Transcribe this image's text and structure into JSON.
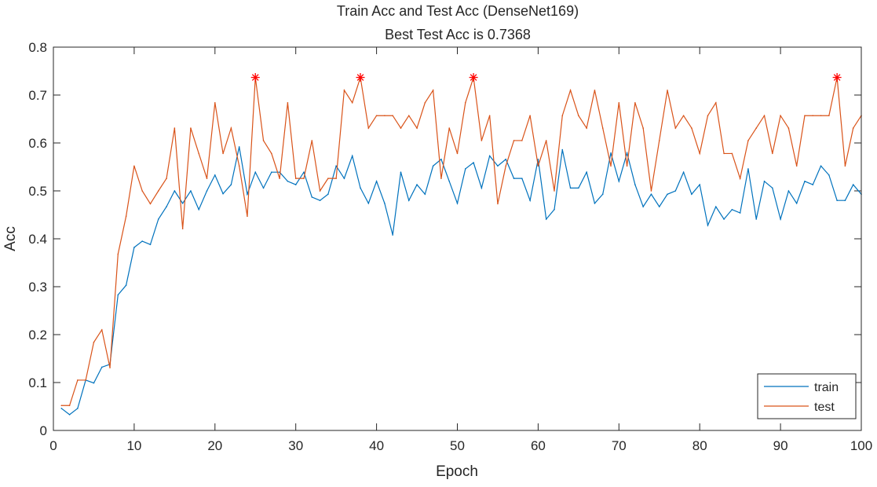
{
  "chart_data": {
    "type": "line",
    "title": "Train Acc and Test Acc (DenseNet169)",
    "subtitle": "Best Test Acc is 0.7368",
    "xlabel": "Epoch",
    "ylabel": "Acc",
    "xlim": [
      0,
      100
    ],
    "ylim": [
      0,
      0.8
    ],
    "xticks": [
      "0",
      "10",
      "20",
      "30",
      "40",
      "50",
      "60",
      "70",
      "80",
      "90",
      "100"
    ],
    "yticks": [
      "0",
      "0.1",
      "0.2",
      "0.3",
      "0.4",
      "0.5",
      "0.6",
      "0.7",
      "0.8"
    ],
    "grid": false,
    "legend_position": "bottom-right",
    "x": [
      1,
      2,
      3,
      4,
      5,
      6,
      7,
      8,
      9,
      10,
      11,
      12,
      13,
      14,
      15,
      16,
      17,
      18,
      19,
      20,
      21,
      22,
      23,
      24,
      25,
      26,
      27,
      28,
      29,
      30,
      31,
      32,
      33,
      34,
      35,
      36,
      37,
      38,
      39,
      40,
      41,
      42,
      43,
      44,
      45,
      46,
      47,
      48,
      49,
      50,
      51,
      52,
      53,
      54,
      55,
      56,
      57,
      58,
      59,
      60,
      61,
      62,
      63,
      64,
      65,
      66,
      67,
      68,
      69,
      70,
      71,
      72,
      73,
      74,
      75,
      76,
      77,
      78,
      79,
      80,
      81,
      82,
      83,
      84,
      85,
      86,
      87,
      88,
      89,
      90,
      91,
      92,
      93,
      94,
      95,
      96,
      97,
      98,
      99,
      100
    ],
    "series": [
      {
        "name": "train",
        "color": "#0072BD",
        "values": [
          0.046,
          0.033,
          0.046,
          0.105,
          0.099,
          0.132,
          0.138,
          0.283,
          0.303,
          0.382,
          0.395,
          0.388,
          0.441,
          0.467,
          0.5,
          0.474,
          0.5,
          0.461,
          0.5,
          0.533,
          0.494,
          0.513,
          0.592,
          0.493,
          0.539,
          0.506,
          0.539,
          0.539,
          0.52,
          0.513,
          0.539,
          0.487,
          0.48,
          0.493,
          0.552,
          0.526,
          0.573,
          0.506,
          0.474,
          0.52,
          0.474,
          0.408,
          0.539,
          0.48,
          0.513,
          0.493,
          0.552,
          0.566,
          0.52,
          0.474,
          0.546,
          0.559,
          0.506,
          0.573,
          0.552,
          0.566,
          0.526,
          0.526,
          0.48,
          0.566,
          0.441,
          0.461,
          0.586,
          0.506,
          0.506,
          0.539,
          0.474,
          0.493,
          0.579,
          0.52,
          0.579,
          0.513,
          0.467,
          0.493,
          0.467,
          0.493,
          0.5,
          0.539,
          0.493,
          0.513,
          0.428,
          0.467,
          0.441,
          0.461,
          0.454,
          0.546,
          0.441,
          0.52,
          0.506,
          0.441,
          0.5,
          0.474,
          0.52,
          0.513,
          0.552,
          0.533,
          0.48,
          0.48,
          0.513,
          0.493
        ]
      },
      {
        "name": "test",
        "color": "#D95319",
        "values": [
          0.052,
          0.052,
          0.105,
          0.105,
          0.184,
          0.21,
          0.131,
          0.368,
          0.447,
          0.552,
          0.5,
          0.473,
          0.5,
          0.526,
          0.631,
          0.421,
          0.631,
          0.578,
          0.526,
          0.684,
          0.578,
          0.631,
          0.552,
          0.447,
          0.7368,
          0.605,
          0.578,
          0.526,
          0.684,
          0.526,
          0.526,
          0.605,
          0.5,
          0.526,
          0.526,
          0.71,
          0.684,
          0.7368,
          0.631,
          0.657,
          0.657,
          0.657,
          0.631,
          0.657,
          0.631,
          0.684,
          0.71,
          0.526,
          0.631,
          0.578,
          0.684,
          0.7368,
          0.605,
          0.657,
          0.473,
          0.552,
          0.605,
          0.605,
          0.657,
          0.552,
          0.605,
          0.5,
          0.657,
          0.71,
          0.657,
          0.631,
          0.71,
          0.631,
          0.552,
          0.684,
          0.552,
          0.684,
          0.631,
          0.5,
          0.605,
          0.71,
          0.631,
          0.657,
          0.631,
          0.578,
          0.657,
          0.684,
          0.578,
          0.578,
          0.526,
          0.605,
          0.631,
          0.657,
          0.578,
          0.657,
          0.631,
          0.552,
          0.657,
          0.657,
          0.657,
          0.657,
          0.7368,
          0.552,
          0.631,
          0.657
        ]
      }
    ],
    "best_markers": {
      "color": "#FF0000",
      "symbol": "asterisk",
      "points": [
        {
          "x": 25,
          "y": 0.7368
        },
        {
          "x": 38,
          "y": 0.7368
        },
        {
          "x": 52,
          "y": 0.7368
        },
        {
          "x": 97,
          "y": 0.7368
        }
      ]
    }
  }
}
